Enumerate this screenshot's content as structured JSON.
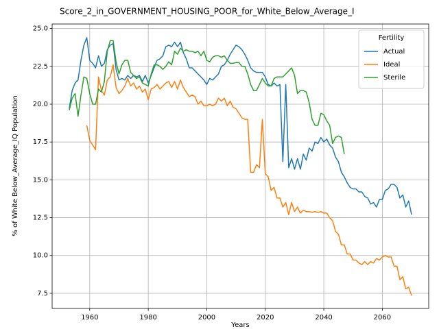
{
  "chart_data": {
    "type": "line",
    "title": "Score_2_in_GOVERNMENT_HOUSING_POOR_for_White_Below_Average_I",
    "xlabel": "Years",
    "ylabel": "% of White Below_Average_IQ Population",
    "legend_title": "Fertility",
    "legend": "upper right",
    "grid": true,
    "xlim": [
      1947.15,
      2075.85
    ],
    "xticks": [
      1960,
      1980,
      2000,
      2020,
      2040,
      2060
    ],
    "ylim": [
      6.5,
      25.3
    ],
    "yticks": [
      7.5,
      {
        "value": 10,
        "label": "10.0"
      },
      12.5,
      {
        "value": 15,
        "label": "15.0"
      },
      17.5,
      {
        "value": 20,
        "label": "20.0"
      },
      22.5,
      {
        "value": 25,
        "label": "25.0"
      }
    ],
    "x": [
      1953,
      1954,
      1955,
      1956,
      1957,
      1958,
      1959,
      1960,
      1961,
      1962,
      1963,
      1964,
      1965,
      1966,
      1967,
      1968,
      1969,
      1970,
      1971,
      1972,
      1973,
      1974,
      1975,
      1976,
      1977,
      1978,
      1979,
      1980,
      1981,
      1982,
      1983,
      1984,
      1985,
      1986,
      1987,
      1988,
      1989,
      1990,
      1991,
      1992,
      1993,
      1994,
      1995,
      1996,
      1997,
      1998,
      1999,
      2000,
      2001,
      2002,
      2003,
      2004,
      2005,
      2006,
      2007,
      2008,
      2009,
      2010,
      2011,
      2012,
      2013,
      2014,
      2015,
      2016,
      2017,
      2018,
      2019,
      2020,
      2021,
      2022,
      2023,
      2024,
      2025,
      2026,
      2027,
      2028,
      2029,
      2030,
      2031,
      2032,
      2033,
      2034,
      2035,
      2036,
      2037,
      2038,
      2039,
      2040,
      2041,
      2042,
      2043,
      2044,
      2045,
      2046,
      2047,
      2048,
      2049,
      2050,
      2051,
      2052,
      2053,
      2054,
      2055,
      2056,
      2057,
      2058,
      2059,
      2060,
      2061,
      2062,
      2063,
      2064,
      2065,
      2066,
      2067,
      2068,
      2069,
      2070
    ],
    "series": [
      {
        "name": "Actual",
        "color": "#1f77b4",
        "values": [
          19.7,
          20.9,
          21.4,
          21.6,
          22.9,
          23.9,
          24.4,
          22.9,
          22.7,
          22.4,
          23.2,
          22.5,
          22.7,
          23.6,
          23.9,
          24.0,
          22.3,
          21.6,
          21.7,
          21.6,
          21.9,
          21.7,
          21.9,
          21.8,
          21.9,
          21.5,
          21.9,
          21.4,
          21.9,
          22.4,
          22.9,
          23.0,
          23.2,
          23.8,
          23.9,
          23.8,
          24.1,
          23.8,
          24.1,
          23.4,
          23.0,
          22.4,
          22.4,
          22.2,
          22.0,
          21.8,
          21.6,
          21.3,
          21.7,
          21.6,
          21.8,
          22.0,
          22.5,
          22.6,
          22.9,
          23.3,
          23.6,
          23.9,
          23.8,
          23.6,
          23.3,
          22.9,
          22.4,
          22.2,
          22.1,
          22.1,
          22.1,
          21.8,
          21.3,
          21.2,
          21.4,
          21.2,
          21.3,
          16.2,
          21.3,
          15.8,
          16.4,
          15.7,
          16.4,
          15.7,
          16.7,
          16.3,
          17.1,
          16.9,
          17.5,
          17.4,
          17.8,
          17.5,
          17.7,
          17.3,
          17.1,
          16.5,
          16.2,
          15.5,
          15.2,
          14.8,
          14.5,
          14.4,
          14.4,
          14.2,
          14.2,
          13.9,
          13.8,
          13.4,
          13.5,
          13.2,
          13.7,
          13.7,
          14.3,
          14.4,
          14.7,
          14.7,
          14.5,
          13.8,
          14.0,
          13.2,
          13.6,
          12.7
        ]
      },
      {
        "name": "Ideal",
        "color": "#ff7f0e",
        "values": [
          null,
          null,
          null,
          null,
          null,
          null,
          18.6,
          17.6,
          17.3,
          17.0,
          21.8,
          20.9,
          20.6,
          21.6,
          21.8,
          22.6,
          21.1,
          20.7,
          20.9,
          21.2,
          21.7,
          21.2,
          21.4,
          21.0,
          21.2,
          20.8,
          21.0,
          20.3,
          21.0,
          21.1,
          21.3,
          21.0,
          21.2,
          21.4,
          21.5,
          21.1,
          21.5,
          21.0,
          21.6,
          21.1,
          20.8,
          20.5,
          20.6,
          20.5,
          20.0,
          20.2,
          19.9,
          19.9,
          20.0,
          19.9,
          20.0,
          20.4,
          20.2,
          20.4,
          19.9,
          20.2,
          19.8,
          19.7,
          19.4,
          19.1,
          19.0,
          19.0,
          15.5,
          15.5,
          16.0,
          15.8,
          19.0,
          15.4,
          15.2,
          14.3,
          14.5,
          13.8,
          13.8,
          13.2,
          13.5,
          12.7,
          13.5,
          12.9,
          13.2,
          12.8,
          13.0,
          12.9,
          12.9,
          12.85,
          12.9,
          12.85,
          12.9,
          12.8,
          12.8,
          12.5,
          12.3,
          11.6,
          11.4,
          10.7,
          10.7,
          10.1,
          10.1,
          9.7,
          9.7,
          9.5,
          9.4,
          9.6,
          9.4,
          9.6,
          9.5,
          9.8,
          9.7,
          9.9,
          10.0,
          9.9,
          9.9,
          9.3,
          9.3,
          8.4,
          8.6,
          7.8,
          7.9,
          7.35
        ]
      },
      {
        "name": "Sterile",
        "color": "#2ca02c",
        "values": [
          19.6,
          20.4,
          20.7,
          19.2,
          20.6,
          21.8,
          21.7,
          20.7,
          20.0,
          20.0,
          21.0,
          20.8,
          21.5,
          23.5,
          24.2,
          24.2,
          22.8,
          22.0,
          22.6,
          22.9,
          22.9,
          22.1,
          21.9,
          21.7,
          21.8,
          21.4,
          21.3,
          21.2,
          22.0,
          22.6,
          22.6,
          22.5,
          22.3,
          22.5,
          22.8,
          22.6,
          23.5,
          23.3,
          23.7,
          23.5,
          23.6,
          23.5,
          23.5,
          23.4,
          23.5,
          23.2,
          23.5,
          22.9,
          22.8,
          23.1,
          23.2,
          23.2,
          23.1,
          23.2,
          22.9,
          22.7,
          22.7,
          22.75,
          22.75,
          22.5,
          22.5,
          22.0,
          21.3,
          20.9,
          20.9,
          21.3,
          21.7,
          21.4,
          21.2,
          21.2,
          21.7,
          21.8,
          21.8,
          21.8,
          22.0,
          22.2,
          22.4,
          21.9,
          20.7,
          20.9,
          20.9,
          20.8,
          20.1,
          19.0,
          18.6,
          18.6,
          19.4,
          19.3,
          18.9,
          18.6,
          17.4,
          17.8,
          17.9,
          17.8,
          16.7,
          null,
          null,
          null,
          null,
          null,
          null,
          null,
          null,
          null,
          null,
          null,
          null,
          null,
          null,
          null,
          null,
          null,
          null,
          null,
          null,
          null,
          null,
          null
        ]
      }
    ]
  }
}
